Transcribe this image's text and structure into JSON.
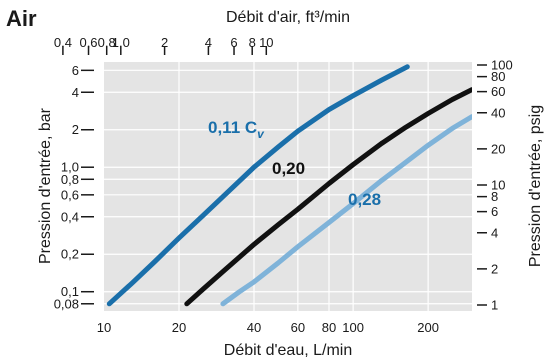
{
  "chart_data": {
    "type": "line",
    "title": "Air",
    "xlabel": "Débit d'eau, L/min",
    "x2label": "Débit d'air, ft³/min",
    "ylabel": "Pression d'entrée, bar",
    "y2label": "Pression d'entrée, psig",
    "xscale": "log",
    "yscale": "log",
    "xlim": [
      10,
      300
    ],
    "ylim": [
      0.07,
      7
    ],
    "grid": true,
    "x_ticks": [
      {
        "value": 10,
        "label": "10"
      },
      {
        "value": 20,
        "label": "20"
      },
      {
        "value": 40,
        "label": "40"
      },
      {
        "value": 60,
        "label": "60"
      },
      {
        "value": 80,
        "label": "80"
      },
      {
        "value": 100,
        "label": "100"
      },
      {
        "value": 200,
        "label": "200"
      }
    ],
    "x2_ticks": [
      {
        "value": 0.4,
        "label": "0,4"
      },
      {
        "value": 0.6,
        "label": "0,6"
      },
      {
        "value": 0.8,
        "label": "0,8"
      },
      {
        "value": 1.0,
        "label": "1,0"
      },
      {
        "value": 2,
        "label": "2"
      },
      {
        "value": 4,
        "label": "4"
      },
      {
        "value": 6,
        "label": "6"
      },
      {
        "value": 8,
        "label": "8"
      },
      {
        "value": 10,
        "label": "10"
      }
    ],
    "y_ticks": [
      {
        "value": 0.08,
        "label": "0,08"
      },
      {
        "value": 0.1,
        "label": "0,1"
      },
      {
        "value": 0.2,
        "label": "0,2"
      },
      {
        "value": 0.4,
        "label": "0,4"
      },
      {
        "value": 0.6,
        "label": "0,6"
      },
      {
        "value": 0.8,
        "label": "0,8"
      },
      {
        "value": 1.0,
        "label": "1,0"
      },
      {
        "value": 2,
        "label": "2"
      },
      {
        "value": 4,
        "label": "4"
      },
      {
        "value": 6,
        "label": "6"
      }
    ],
    "y2_ticks": [
      {
        "value": 1,
        "label": "1"
      },
      {
        "value": 2,
        "label": "2"
      },
      {
        "value": 4,
        "label": "4"
      },
      {
        "value": 6,
        "label": "6"
      },
      {
        "value": 8,
        "label": "8"
      },
      {
        "value": 10,
        "label": "10"
      },
      {
        "value": 20,
        "label": "20"
      },
      {
        "value": 40,
        "label": "40"
      },
      {
        "value": 60,
        "label": "60"
      },
      {
        "value": 80,
        "label": "80"
      },
      {
        "value": 100,
        "label": "100"
      }
    ],
    "series": [
      {
        "name": "0,11 C",
        "name_sub": "v",
        "color": "#1a6faa",
        "x": [
          10.5,
          13,
          16,
          20,
          25,
          30,
          40,
          50,
          60,
          80,
          100,
          130,
          165
        ],
        "y": [
          0.08,
          0.118,
          0.175,
          0.27,
          0.41,
          0.58,
          1.0,
          1.45,
          1.95,
          2.9,
          3.75,
          5.0,
          6.4
        ]
      },
      {
        "name": "0,20",
        "color": "#111111",
        "x": [
          21.5,
          25,
          30,
          40,
          50,
          60,
          80,
          100,
          130,
          160,
          200,
          250,
          300
        ],
        "y": [
          0.08,
          0.105,
          0.145,
          0.24,
          0.345,
          0.46,
          0.74,
          1.05,
          1.55,
          2.05,
          2.7,
          3.5,
          4.2
        ]
      },
      {
        "name": "0,28",
        "color": "#7fb3d9",
        "x": [
          30,
          35,
          40,
          50,
          60,
          80,
          100,
          130,
          160,
          200,
          250,
          300
        ],
        "y": [
          0.08,
          0.1,
          0.12,
          0.17,
          0.23,
          0.36,
          0.51,
          0.78,
          1.07,
          1.5,
          2.05,
          2.55
        ]
      }
    ]
  }
}
